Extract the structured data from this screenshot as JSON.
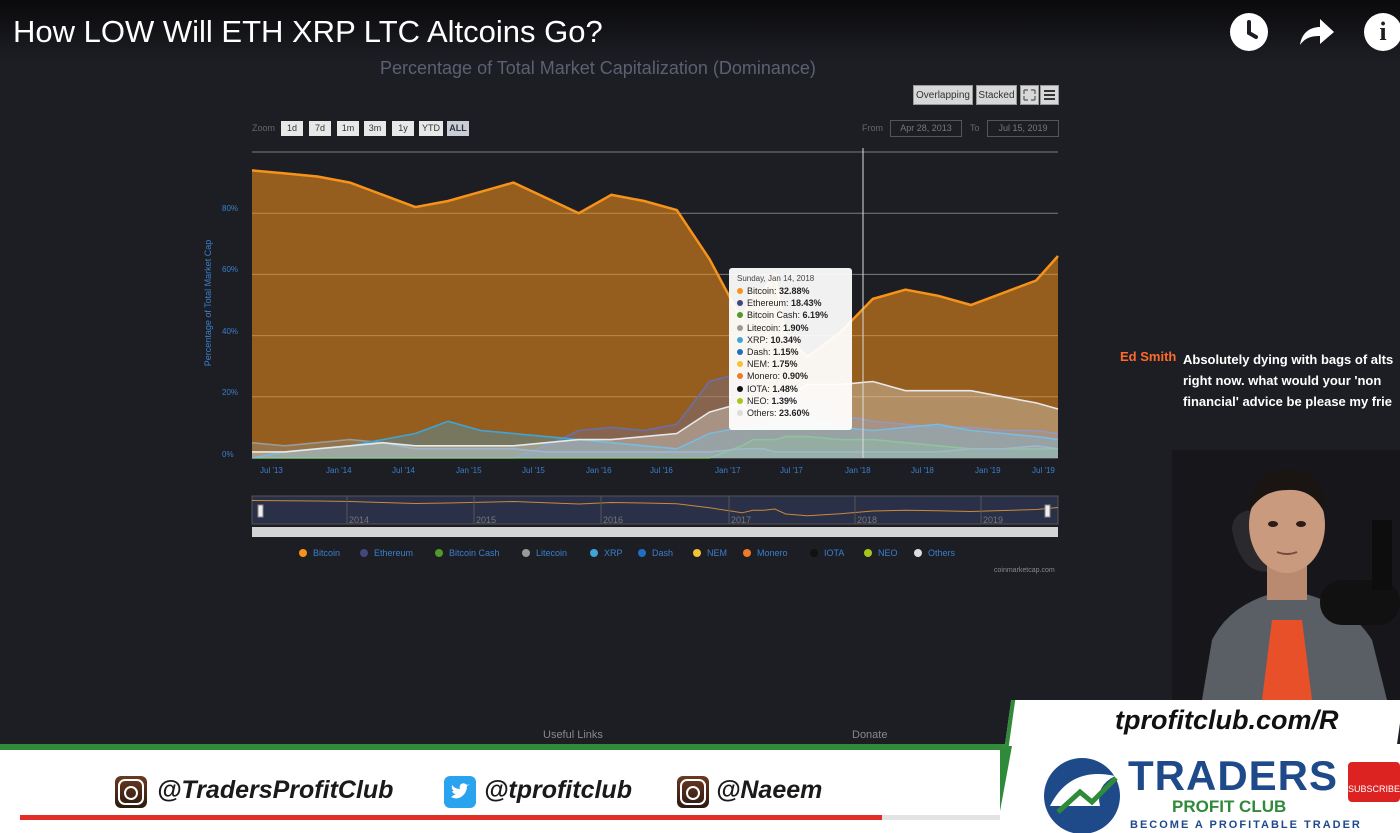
{
  "video": {
    "title": "How LOW Will ETH XRP LTC Altcoins Go?",
    "progress": 0.88
  },
  "chart_header": {
    "title": "Percentage of Total Market Capitalization (Dominance)",
    "buttons": [
      "Overlapping",
      "Stacked"
    ],
    "zoom_label": "Zoom",
    "zoom_options": [
      "1d",
      "7d",
      "1m",
      "3m",
      "1y",
      "YTD",
      "ALL"
    ],
    "zoom_active": "ALL",
    "from_label": "From",
    "from_date": "Apr 28, 2013",
    "to_label": "To",
    "to_date": "Jul 15, 2019",
    "credit": "coinmarketcap.com"
  },
  "chart_data": {
    "type": "area",
    "ylabel": "Percentage of Total Market Cap",
    "yticks": [
      "0%",
      "20%",
      "40%",
      "60%",
      "80%"
    ],
    "xticks": [
      "Jul '13",
      "Jan '14",
      "Jul '14",
      "Jan '15",
      "Jul '15",
      "Jan '16",
      "Jul '16",
      "Jan '17",
      "Jul '17",
      "Jan '18",
      "Jul '18",
      "Jan '19",
      "Jul '19"
    ],
    "navigator_years": [
      "2014",
      "2015",
      "2016",
      "2017",
      "2018",
      "2019"
    ],
    "ylim": [
      0,
      100
    ],
    "x": [
      0,
      3,
      6,
      9,
      12,
      15,
      18,
      21,
      24,
      27,
      30,
      33,
      36,
      39,
      42,
      45,
      46,
      47,
      48,
      49,
      51,
      54,
      57,
      60,
      63,
      66,
      69,
      72,
      74
    ],
    "x_unit": "months since Jun 2013",
    "series": [
      {
        "name": "Bitcoin",
        "color": "#f7931a",
        "values": [
          94,
          93,
          92,
          90,
          86,
          82,
          84,
          87,
          90,
          85,
          80,
          86,
          84,
          81,
          65,
          45,
          55,
          55,
          60,
          40,
          33,
          41,
          52,
          55,
          53,
          50,
          54,
          58,
          66
        ]
      },
      {
        "name": "Ethereum",
        "color": "#6b6fa8",
        "values": [
          0,
          0,
          0,
          0,
          0,
          0,
          0,
          0,
          0,
          4,
          9,
          10,
          9,
          11,
          25,
          28,
          22,
          18,
          20,
          22,
          19,
          14,
          12,
          11,
          10,
          10,
          9,
          9,
          8
        ]
      },
      {
        "name": "Bitcoin Cash",
        "color": "#6fb542",
        "values": [
          0,
          0,
          0,
          0,
          0,
          0,
          0,
          0,
          0,
          0,
          0,
          0,
          0,
          0,
          0,
          4,
          6,
          6,
          6,
          7,
          7,
          6,
          6,
          5,
          4,
          3,
          3,
          3,
          3
        ]
      },
      {
        "name": "Litecoin",
        "color": "#9a9a9a",
        "values": [
          5,
          4,
          5,
          6,
          5,
          3,
          3,
          3,
          3,
          2,
          2,
          2,
          2,
          2,
          2,
          3,
          3,
          3,
          2,
          2,
          2,
          2,
          2,
          2,
          2,
          3,
          3,
          4,
          3
        ]
      },
      {
        "name": "XRP",
        "color": "#3ea5d9",
        "values": [
          0,
          2,
          3,
          4,
          6,
          8,
          12,
          9,
          8,
          7,
          6,
          5,
          4,
          3,
          8,
          10,
          11,
          10,
          12,
          18,
          14,
          10,
          9,
          10,
          11,
          9,
          8,
          7,
          6
        ]
      },
      {
        "name": "Others",
        "color": "#e8e8e8",
        "values": [
          2,
          2,
          3,
          4,
          5,
          4,
          4,
          4,
          4,
          5,
          6,
          6,
          7,
          8,
          15,
          18,
          14,
          16,
          18,
          20,
          24,
          24,
          25,
          22,
          22,
          22,
          20,
          18,
          16
        ]
      }
    ],
    "tooltip": {
      "date": "Sunday, Jan 14, 2018",
      "rows": [
        {
          "name": "Bitcoin",
          "value": "32.88%",
          "color": "#f7931a"
        },
        {
          "name": "Ethereum",
          "value": "18.43%",
          "color": "#43477a"
        },
        {
          "name": "Bitcoin Cash",
          "value": "6.19%",
          "color": "#4f9a2a"
        },
        {
          "name": "Litecoin",
          "value": "1.90%",
          "color": "#9a9a9a"
        },
        {
          "name": "XRP",
          "value": "10.34%",
          "color": "#3ea5d9"
        },
        {
          "name": "Dash",
          "value": "1.15%",
          "color": "#1f6fc1"
        },
        {
          "name": "NEM",
          "value": "1.75%",
          "color": "#f5c232"
        },
        {
          "name": "Monero",
          "value": "0.90%",
          "color": "#f07a26"
        },
        {
          "name": "IOTA",
          "value": "1.48%",
          "color": "#111111"
        },
        {
          "name": "NEO",
          "value": "1.39%",
          "color": "#a6c61c"
        },
        {
          "name": "Others",
          "value": "23.60%",
          "color": "#dddddd"
        }
      ]
    },
    "legend": [
      {
        "name": "Bitcoin",
        "color": "#f7931a"
      },
      {
        "name": "Ethereum",
        "color": "#43477a"
      },
      {
        "name": "Bitcoin Cash",
        "color": "#4f9a2a"
      },
      {
        "name": "Litecoin",
        "color": "#9a9a9a"
      },
      {
        "name": "XRP",
        "color": "#3ea5d9"
      },
      {
        "name": "Dash",
        "color": "#1f6fc1"
      },
      {
        "name": "NEM",
        "color": "#f5c232"
      },
      {
        "name": "Monero",
        "color": "#f07a26"
      },
      {
        "name": "IOTA",
        "color": "#111111"
      },
      {
        "name": "NEO",
        "color": "#a6c61c"
      },
      {
        "name": "Others",
        "color": "#dddddd"
      }
    ]
  },
  "page_footer": {
    "useful_links": "Useful Links",
    "donate": "Donate"
  },
  "chat": {
    "user": "Ed Smith",
    "message": "Absolutely dying with bags of alts right now. what would your 'non financial' advice be please my frie"
  },
  "banner": {
    "instagram_1": "@TradersProfitClub",
    "twitter": "@tprofitclub",
    "instagram_2": "@Naeem",
    "url": "tprofitclub.com/R",
    "logo_main": "TRADERS",
    "logo_sub": "PROFIT CLUB",
    "logo_tag": "BECOME A PROFITABLE TRADER",
    "subscribe": "SUBSCRIBE"
  }
}
